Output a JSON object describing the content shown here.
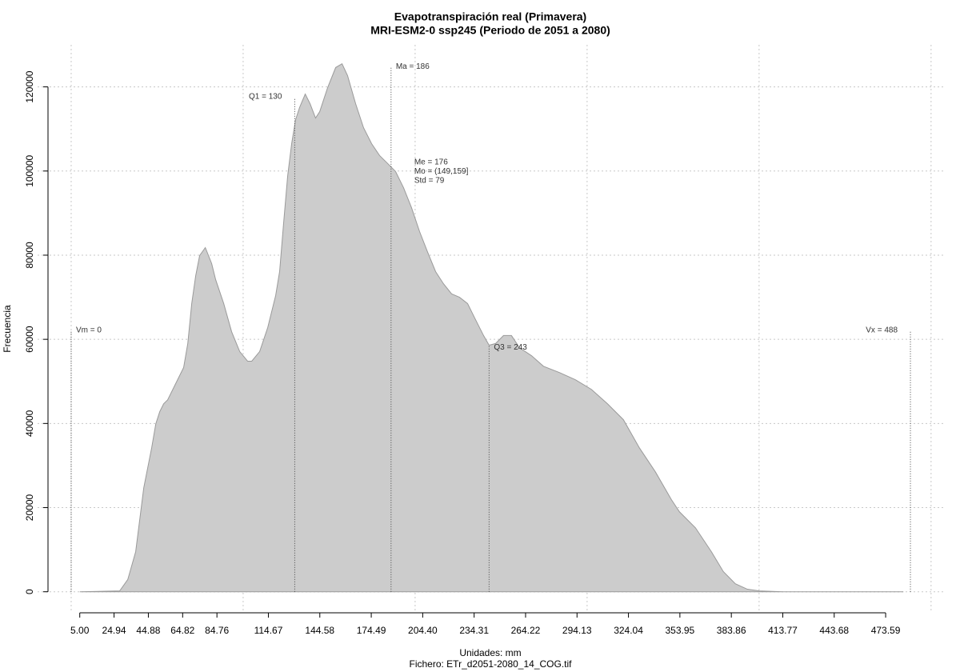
{
  "chart_data": {
    "type": "area",
    "title": "Evapotranspiración real (Primavera)",
    "subtitle": "MRI-ESM2-0 ssp245 (Periodo de 2051 a 2080)",
    "xlabel": "Unidades: mm",
    "caption": "Fichero: ETr_d2051-2080_14_COG.tif",
    "ylabel": "Frecuencia",
    "color": "#cccccc",
    "line_color": "#9a9a9a",
    "grid": true,
    "x": [
      5.0,
      28.2,
      32.9,
      37.5,
      42.2,
      46.8,
      49.2,
      51.5,
      53.8,
      56.1,
      60.8,
      65.4,
      67.8,
      70.1,
      72.4,
      74.7,
      78.0,
      81.7,
      84.0,
      88.7,
      93.3,
      98.0,
      102.6,
      105.0,
      109.6,
      114.3,
      118.9,
      121.2,
      123.5,
      125.9,
      128.2,
      130.5,
      132.8,
      136.1,
      138.9,
      142.1,
      144.5,
      149.1,
      153.8,
      157.5,
      160.7,
      165.4,
      170.0,
      174.7,
      179.3,
      184.0,
      188.6,
      193.3,
      197.9,
      202.6,
      207.2,
      211.9,
      216.5,
      221.2,
      225.8,
      230.5,
      235.1,
      239.8,
      243.0,
      246.8,
      251.4,
      256.0,
      260.7,
      267.7,
      274.6,
      283.9,
      293.2,
      302.5,
      311.8,
      321.1,
      330.4,
      339.7,
      349.0,
      353.7,
      363.0,
      372.3,
      379.2,
      386.2,
      393.2,
      400.2,
      414.1,
      483.9
    ],
    "values": [
      0,
      200,
      2900,
      9500,
      24700,
      34200,
      39900,
      42800,
      44700,
      45600,
      49500,
      53300,
      59000,
      68500,
      75100,
      79900,
      81800,
      78000,
      74200,
      68500,
      61800,
      57100,
      54800,
      54800,
      57100,
      62800,
      70400,
      76100,
      87500,
      98900,
      106500,
      112200,
      115100,
      118300,
      116000,
      112600,
      114100,
      119800,
      124600,
      125500,
      122700,
      116000,
      110300,
      106500,
      103700,
      101800,
      99900,
      96000,
      91300,
      85600,
      80800,
      76100,
      73200,
      70800,
      70000,
      68500,
      64700,
      60900,
      58600,
      59000,
      60900,
      60900,
      58000,
      56100,
      53600,
      52100,
      50400,
      48100,
      44700,
      40900,
      34200,
      28500,
      21900,
      19000,
      15200,
      9500,
      4800,
      1900,
      600,
      200,
      0,
      0
    ],
    "xlim": [
      -19.52,
      507.52
    ],
    "ylim": [
      -5000,
      130000
    ],
    "xticks": [
      {
        "value": 5.0,
        "label": "5.00"
      },
      {
        "value": 24.94,
        "label": "24.94"
      },
      {
        "value": 44.88,
        "label": "44.88"
      },
      {
        "value": 64.82,
        "label": "64.82"
      },
      {
        "value": 84.76,
        "label": "84.76"
      },
      {
        "value": 114.67,
        "label": "114.67"
      },
      {
        "value": 144.58,
        "label": "144.58"
      },
      {
        "value": 174.49,
        "label": "174.49"
      },
      {
        "value": 204.4,
        "label": "204.40"
      },
      {
        "value": 234.31,
        "label": "234.31"
      },
      {
        "value": 264.22,
        "label": "264.22"
      },
      {
        "value": 294.13,
        "label": "294.13"
      },
      {
        "value": 324.04,
        "label": "324.04"
      },
      {
        "value": 353.95,
        "label": "353.95"
      },
      {
        "value": 383.86,
        "label": "383.86"
      },
      {
        "value": 413.77,
        "label": "413.77"
      },
      {
        "value": 443.68,
        "label": "443.68"
      },
      {
        "value": 473.59,
        "label": "473.59"
      }
    ],
    "xgrid": [
      0,
      100,
      200,
      300,
      400,
      500
    ],
    "yticks": [
      0,
      20000,
      40000,
      60000,
      80000,
      100000,
      120000
    ],
    "vlines": [
      {
        "x": 0,
        "top": 62000,
        "label": "Vm = 0",
        "label_side": "right"
      },
      {
        "x": 130,
        "top": 117500,
        "label": "Q1 = 130",
        "label_side": "left"
      },
      {
        "x": 186,
        "top": 124600,
        "label": "Ma = 186",
        "label_side": "right"
      },
      {
        "x": 243,
        "top": 58600,
        "label": "Q3 = 243",
        "label_side": "right"
      },
      {
        "x": 488,
        "top": 62000,
        "label": "Vx = 488",
        "label_side": "left"
      }
    ],
    "stats": [
      "Me = 176",
      "Mo = (149,159]",
      "Std = 79"
    ]
  }
}
